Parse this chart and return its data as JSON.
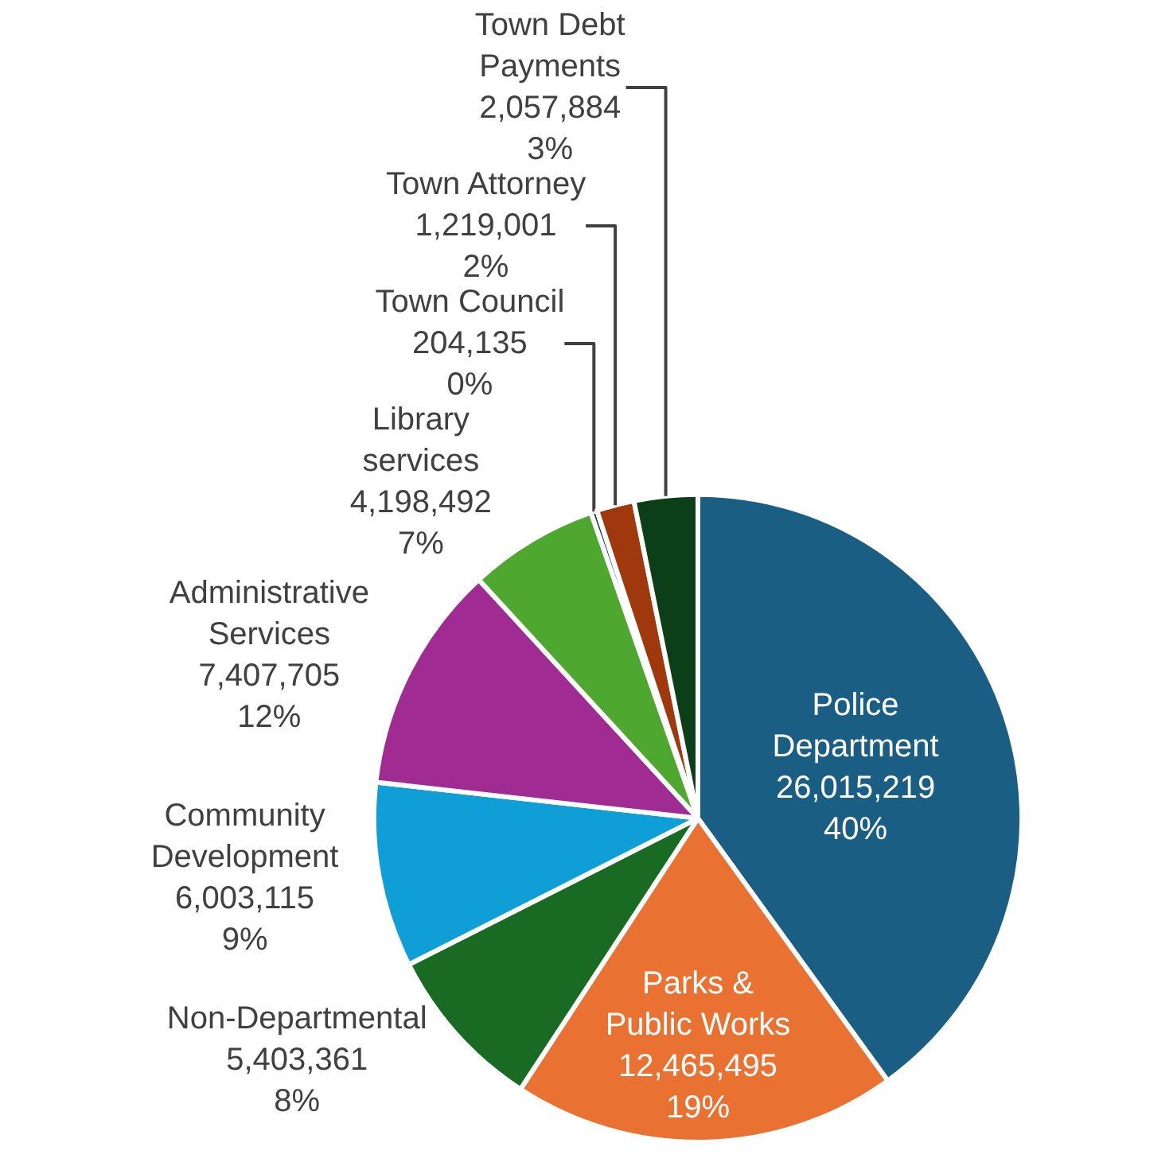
{
  "chart_data": {
    "type": "pie",
    "categories": [
      "Police Department",
      "Parks & Public Works",
      "Non-Departmental",
      "Community Development",
      "Administrative Services",
      "Library services",
      "Town Council",
      "Town Attorney",
      "Town Debt Payments"
    ],
    "values": [
      26015219,
      12465495,
      5403361,
      6003115,
      7407705,
      4198492,
      204135,
      1219001,
      2057884
    ],
    "value_labels": [
      "26,015,219\n40%",
      "12,465,495\n19%",
      "5,403,361\n8%",
      "6,003,115\n9%",
      "7,407,705\n12%",
      "4,198,492\n7%",
      "204,135\n0%",
      "1,219,001\n2%",
      "2,057,884\n3%"
    ],
    "colors": [
      "#1a5e84",
      "#e97132",
      "#196b24",
      "#0f9ed5",
      "#a02b93",
      "#4ea72e",
      "#0e3a5a",
      "#a0380e",
      "#0c3f17"
    ]
  }
}
